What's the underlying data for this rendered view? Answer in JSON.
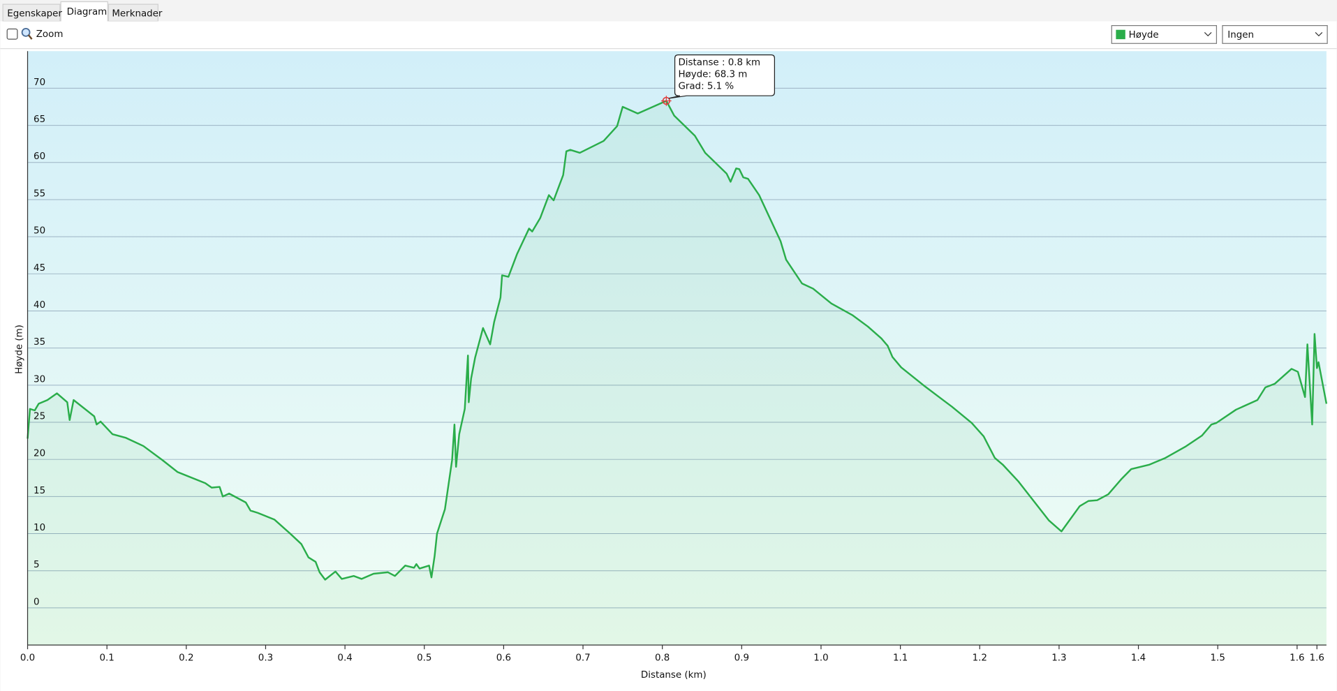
{
  "tabs": [
    "Egenskaper",
    "Diagram",
    "Merknader"
  ],
  "toolbar": {
    "zoom_label": "Zoom",
    "second_select": "Ingen"
  },
  "chart_data": {
    "type": "line",
    "xlabel": "Distanse  (km)",
    "ylabel": "Høyde (m)",
    "xlim": [
      0,
      1.637
    ],
    "ylim": [
      -5,
      75
    ],
    "xticks": [
      {
        "value": 0,
        "label": "0.0"
      },
      0.1,
      0.2,
      0.3,
      0.4,
      0.5,
      0.6,
      0.7,
      0.8,
      0.9,
      {
        "value": 1,
        "label": "1.0"
      },
      1.1,
      1.2,
      1.3,
      1.4,
      1.5,
      1.6,
      {
        "value": 1.625,
        "label": "1.6"
      }
    ],
    "yticks": [
      0,
      5,
      10,
      15,
      20,
      25,
      30,
      35,
      40,
      45,
      50,
      55,
      60,
      65,
      70
    ],
    "grid": true,
    "tooltip": {
      "x": 0.805,
      "y": 68.3,
      "lines": [
        "Distanse : 0.8 km",
        "Høyde: 68.3 m",
        "Grad: 5.1 %"
      ]
    },
    "x": [
      0,
      0.003,
      0.009,
      0.014,
      0.025,
      0.037,
      0.05,
      0.053,
      0.058,
      0.084,
      0.087,
      0.092,
      0.107,
      0.124,
      0.146,
      0.17,
      0.189,
      0.224,
      0.232,
      0.242,
      0.246,
      0.254,
      0.275,
      0.281,
      0.29,
      0.311,
      0.331,
      0.345,
      0.354,
      0.363,
      0.368,
      0.375,
      0.388,
      0.396,
      0.411,
      0.421,
      0.436,
      0.454,
      0.463,
      0.476,
      0.487,
      0.49,
      0.494,
      0.506,
      0.509,
      0.513,
      0.516,
      0.526,
      0.535,
      0.538,
      0.54,
      0.544,
      0.551,
      0.555,
      0.556,
      0.559,
      0.564,
      0.574,
      0.583,
      0.588,
      0.596,
      0.598,
      0.606,
      0.617,
      0.632,
      0.636,
      0.646,
      0.657,
      0.663,
      0.675,
      0.679,
      0.684,
      0.696,
      0.726,
      0.743,
      0.75,
      0.769,
      0.805,
      0.815,
      0.841,
      0.854,
      0.881,
      0.886,
      0.893,
      0.897,
      0.902,
      0.908,
      0.922,
      0.949,
      0.956,
      0.976,
      0.99,
      1.013,
      1.04,
      1.059,
      1.076,
      1.084,
      1.09,
      1.101,
      1.129,
      1.155,
      1.165,
      1.19,
      1.205,
      1.219,
      1.229,
      1.249,
      1.287,
      1.303,
      1.326,
      1.337,
      1.348,
      1.362,
      1.379,
      1.391,
      1.414,
      1.434,
      1.459,
      1.48,
      1.492,
      1.498,
      1.523,
      1.55,
      1.56,
      1.572,
      1.593,
      1.601,
      1.61,
      1.613,
      1.619,
      1.622,
      1.625,
      1.627,
      1.637
    ],
    "series": [
      {
        "name": "Høyde",
        "color": "#2aad4a",
        "values": [
          22.8,
          26.8,
          26.6,
          27.5,
          28,
          28.9,
          27.7,
          25.3,
          28,
          25.8,
          24.7,
          25.1,
          23.4,
          22.9,
          21.8,
          19.9,
          18.3,
          16.8,
          16.2,
          16.3,
          15,
          15.4,
          14.2,
          13.1,
          12.8,
          11.9,
          10,
          8.6,
          6.8,
          6.2,
          4.8,
          3.8,
          4.9,
          3.9,
          4.3,
          3.9,
          4.6,
          4.8,
          4.3,
          5.7,
          5.4,
          5.9,
          5.3,
          5.7,
          4.1,
          7,
          10,
          13.3,
          19.9,
          24.7,
          19,
          23.4,
          26.8,
          34,
          27.7,
          30.9,
          33.7,
          37.7,
          35.5,
          38.5,
          41.8,
          44.8,
          44.6,
          47.7,
          51.1,
          50.7,
          52.5,
          55.6,
          54.9,
          58.3,
          61.5,
          61.7,
          61.3,
          62.9,
          64.9,
          67.5,
          66.6,
          68.3,
          66.3,
          63.6,
          61.3,
          58.5,
          57.4,
          59.2,
          59.1,
          58,
          57.8,
          55.6,
          49.4,
          46.9,
          43.7,
          43,
          41,
          39.4,
          37.9,
          36.3,
          35.3,
          33.8,
          32.4,
          30,
          27.9,
          27.1,
          24.9,
          23.1,
          20.2,
          19.3,
          17,
          11.8,
          10.3,
          13.7,
          14.4,
          14.5,
          15.3,
          17.4,
          18.7,
          19.3,
          20.2,
          21.7,
          23.2,
          24.7,
          24.9,
          26.7,
          28,
          29.7,
          30.2,
          32.2,
          31.8,
          28.4,
          35.5,
          24.7,
          36.9,
          32.3,
          33.1,
          27.5
        ]
      }
    ]
  }
}
